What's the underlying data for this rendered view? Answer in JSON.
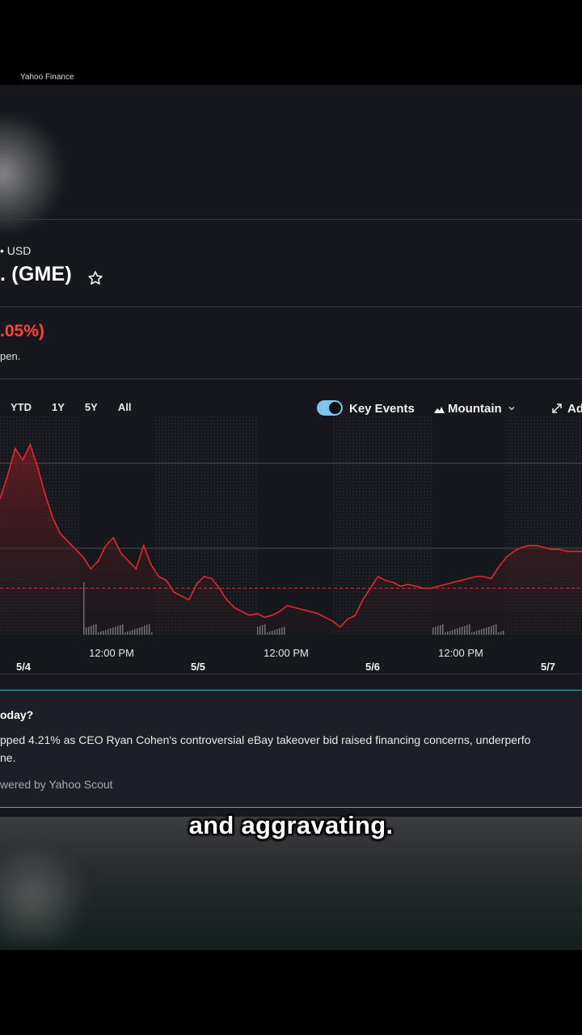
{
  "source": "Yahoo Finance",
  "quote": {
    "exchange": "• USD",
    "title": ". (GME)",
    "change_pct": ".05%)",
    "market_note": "pen."
  },
  "ranges": [
    "YTD",
    "1Y",
    "5Y",
    "All"
  ],
  "toolbar": {
    "key_events_label": "Key Events",
    "key_events_on": true,
    "chart_type_label": "Mountain",
    "advanced_label": "Ad"
  },
  "colors": {
    "line": "#e3262f",
    "accent": "#7cc6ef",
    "down": "#ff433d",
    "card_border": "#2fb4c9"
  },
  "chart_data": {
    "type": "area",
    "x_tick_labels": [
      "12:00 PM",
      "12:00 PM",
      "12:00 PM"
    ],
    "date_labels": [
      "5/4",
      "5/5",
      "5/6",
      "5/7"
    ],
    "reference_line": "dashed previous close",
    "series": [
      {
        "values": [
          70,
          82,
          96,
          90,
          98,
          86,
          72,
          60,
          52,
          48,
          44,
          40,
          34,
          38,
          46,
          50,
          42,
          38,
          34,
          46,
          36,
          30,
          28,
          22,
          20,
          18,
          26,
          30,
          29,
          24,
          18,
          14,
          12,
          10,
          11,
          9,
          10,
          12,
          15,
          14,
          13,
          12,
          11,
          9,
          7,
          4,
          8,
          10,
          18,
          24,
          30,
          28,
          27,
          25,
          26,
          25,
          24,
          24,
          25,
          26,
          27,
          28,
          29,
          30,
          30,
          29,
          35,
          40,
          43,
          45,
          46,
          46,
          45,
          44,
          44,
          43,
          43,
          43
        ]
      }
    ]
  },
  "scout": {
    "question": "oday?",
    "line1": "pped 4.21% as CEO Ryan Cohen's controversial eBay takeover bid raised financing concerns, underperfo",
    "line2": "ne.",
    "credit": "wered by Yahoo Scout"
  },
  "caption": "and aggravating."
}
